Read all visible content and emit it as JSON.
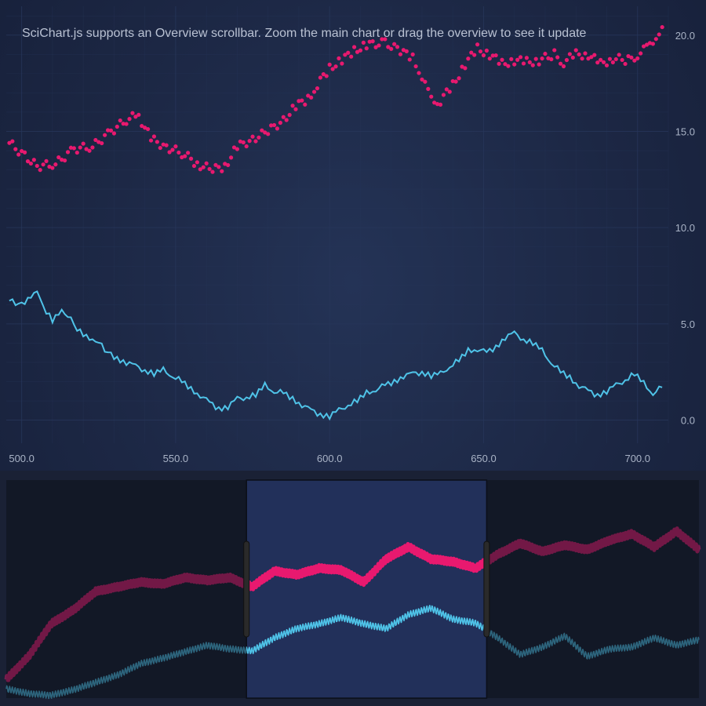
{
  "title": "SciChart.js supports an Overview scrollbar. Zoom the main chart or drag the overview to see it update",
  "colors": {
    "background": "#1c2744",
    "grid": "#27365a",
    "series_pink": "#e8196f",
    "series_cyan": "#4fc3e8",
    "overview_bg": "#121826",
    "overview_selection": "#22305a",
    "axis_text": "#a9b3c6"
  },
  "chart_data": {
    "type": "scatter",
    "title": "SciChart.js supports an Overview scrollbar. Zoom the main chart or drag the overview to see it update",
    "xlabel": "",
    "ylabel": "",
    "xlim": [
      495,
      710
    ],
    "ylim": [
      -1.2,
      21.5
    ],
    "x_ticks": [
      "500.0",
      "550.0",
      "600.0",
      "650.0",
      "700.0"
    ],
    "x_tick_values": [
      500,
      550,
      600,
      650,
      700
    ],
    "y_ticks": [
      "0.0",
      "5.0",
      "10.0",
      "15.0",
      "20.0"
    ],
    "y_tick_values": [
      0,
      5,
      10,
      15,
      20
    ],
    "y_axis_position": "right",
    "grid": true,
    "series": [
      {
        "kind": "scatter",
        "color": "#e8196f",
        "points": [
          [
            496,
            14.4
          ],
          [
            505,
            13.2
          ],
          [
            511,
            13.3
          ],
          [
            517,
            14.1
          ],
          [
            523,
            14.2
          ],
          [
            529,
            15.0
          ],
          [
            535,
            15.7
          ],
          [
            538,
            15.8
          ],
          [
            542,
            14.6
          ],
          [
            547,
            14.2
          ],
          [
            553,
            13.8
          ],
          [
            557,
            13.3
          ],
          [
            562,
            13.0
          ],
          [
            566,
            13.2
          ],
          [
            570,
            14.2
          ],
          [
            575,
            14.6
          ],
          [
            580,
            15.0
          ],
          [
            585,
            15.6
          ],
          [
            589,
            16.3
          ],
          [
            593,
            16.7
          ],
          [
            596,
            17.4
          ],
          [
            600,
            18.3
          ],
          [
            604,
            18.7
          ],
          [
            608,
            19.2
          ],
          [
            612,
            19.5
          ],
          [
            618,
            19.6
          ],
          [
            623,
            19.2
          ],
          [
            627,
            18.8
          ],
          [
            630,
            17.9
          ],
          [
            633,
            16.6
          ],
          [
            636,
            16.6
          ],
          [
            640,
            17.4
          ],
          [
            644,
            18.5
          ],
          [
            648,
            19.3
          ],
          [
            652,
            19.0
          ],
          [
            656,
            18.5
          ],
          [
            660,
            18.7
          ],
          [
            664,
            18.6
          ],
          [
            668,
            18.7
          ],
          [
            673,
            19.0
          ],
          [
            676,
            18.6
          ],
          [
            680,
            19.0
          ],
          [
            684,
            19.0
          ],
          [
            688,
            18.5
          ],
          [
            692,
            18.8
          ],
          [
            697,
            18.7
          ],
          [
            700,
            19.0
          ],
          [
            703,
            19.3
          ],
          [
            706,
            20.0
          ],
          [
            709,
            20.3
          ]
        ]
      },
      {
        "kind": "line",
        "color": "#4fc3e8",
        "points": [
          [
            496,
            6.2
          ],
          [
            500,
            6.0
          ],
          [
            503,
            6.5
          ],
          [
            505,
            6.6
          ],
          [
            507,
            5.9
          ],
          [
            510,
            5.2
          ],
          [
            513,
            5.6
          ],
          [
            516,
            5.4
          ],
          [
            518,
            4.7
          ],
          [
            521,
            4.3
          ],
          [
            524,
            4.2
          ],
          [
            528,
            3.5
          ],
          [
            531,
            3.2
          ],
          [
            534,
            3.0
          ],
          [
            537,
            2.8
          ],
          [
            540,
            2.6
          ],
          [
            543,
            2.4
          ],
          [
            546,
            2.6
          ],
          [
            549,
            2.3
          ],
          [
            552,
            2.0
          ],
          [
            555,
            1.6
          ],
          [
            558,
            1.3
          ],
          [
            561,
            0.9
          ],
          [
            564,
            0.6
          ],
          [
            567,
            0.7
          ],
          [
            570,
            1.1
          ],
          [
            573,
            1.2
          ],
          [
            576,
            1.3
          ],
          [
            579,
            1.8
          ],
          [
            582,
            1.5
          ],
          [
            585,
            1.4
          ],
          [
            588,
            1.1
          ],
          [
            591,
            0.8
          ],
          [
            594,
            0.5
          ],
          [
            597,
            0.3
          ],
          [
            600,
            0.2
          ],
          [
            603,
            0.5
          ],
          [
            606,
            0.8
          ],
          [
            609,
            1.0
          ],
          [
            612,
            1.4
          ],
          [
            615,
            1.6
          ],
          [
            618,
            1.8
          ],
          [
            621,
            2.0
          ],
          [
            624,
            2.3
          ],
          [
            627,
            2.4
          ],
          [
            630,
            2.5
          ],
          [
            633,
            2.3
          ],
          [
            636,
            2.4
          ],
          [
            639,
            2.8
          ],
          [
            642,
            3.1
          ],
          [
            645,
            3.6
          ],
          [
            648,
            3.7
          ],
          [
            651,
            3.5
          ],
          [
            654,
            3.8
          ],
          [
            657,
            4.3
          ],
          [
            660,
            4.5
          ],
          [
            663,
            4.2
          ],
          [
            666,
            4.0
          ],
          [
            669,
            3.6
          ],
          [
            672,
            3.0
          ],
          [
            675,
            2.5
          ],
          [
            678,
            2.2
          ],
          [
            681,
            1.8
          ],
          [
            684,
            1.5
          ],
          [
            687,
            1.3
          ],
          [
            690,
            1.5
          ],
          [
            693,
            1.8
          ],
          [
            696,
            2.1
          ],
          [
            699,
            2.4
          ],
          [
            702,
            1.9
          ],
          [
            705,
            1.4
          ],
          [
            708,
            1.7
          ]
        ]
      }
    ],
    "overview": {
      "xlim": [
        280,
        900
      ],
      "ylim": [
        -1.5,
        22.0
      ],
      "selected_range": [
        495,
        710
      ],
      "series": [
        {
          "kind": "line",
          "color": "#e8196f",
          "points": [
            [
              280,
              0.5
            ],
            [
              300,
              3.0
            ],
            [
              320,
              6.5
            ],
            [
              340,
              8.0
            ],
            [
              360,
              10.0
            ],
            [
              380,
              10.5
            ],
            [
              400,
              11.0
            ],
            [
              420,
              10.8
            ],
            [
              440,
              11.5
            ],
            [
              460,
              11.2
            ],
            [
              480,
              11.5
            ],
            [
              500,
              10.5
            ],
            [
              520,
              12.2
            ],
            [
              540,
              11.8
            ],
            [
              560,
              12.5
            ],
            [
              580,
              12.3
            ],
            [
              600,
              11.0
            ],
            [
              620,
              13.5
            ],
            [
              640,
              14.8
            ],
            [
              660,
              13.5
            ],
            [
              680,
              13.2
            ],
            [
              700,
              12.5
            ],
            [
              720,
              14.0
            ],
            [
              740,
              15.2
            ],
            [
              760,
              14.3
            ],
            [
              780,
              15.0
            ],
            [
              800,
              14.5
            ],
            [
              820,
              15.5
            ],
            [
              840,
              16.2
            ],
            [
              860,
              14.8
            ],
            [
              880,
              16.5
            ],
            [
              900,
              14.5
            ]
          ]
        },
        {
          "kind": "line",
          "color": "#4fc3e8",
          "points": [
            [
              280,
              -0.5
            ],
            [
              300,
              -1.0
            ],
            [
              320,
              -1.2
            ],
            [
              340,
              -0.6
            ],
            [
              360,
              0.2
            ],
            [
              380,
              1.0
            ],
            [
              400,
              2.2
            ],
            [
              420,
              2.8
            ],
            [
              440,
              3.5
            ],
            [
              460,
              4.2
            ],
            [
              480,
              3.8
            ],
            [
              500,
              3.6
            ],
            [
              520,
              5.0
            ],
            [
              540,
              6.0
            ],
            [
              560,
              6.5
            ],
            [
              580,
              7.2
            ],
            [
              600,
              6.5
            ],
            [
              620,
              6.0
            ],
            [
              640,
              7.5
            ],
            [
              660,
              8.2
            ],
            [
              680,
              7.0
            ],
            [
              700,
              6.6
            ],
            [
              720,
              5.0
            ],
            [
              740,
              3.2
            ],
            [
              760,
              4.0
            ],
            [
              780,
              5.2
            ],
            [
              800,
              3.0
            ],
            [
              820,
              3.8
            ],
            [
              840,
              4.0
            ],
            [
              860,
              5.0
            ],
            [
              880,
              4.2
            ],
            [
              900,
              4.8
            ]
          ]
        }
      ]
    }
  }
}
